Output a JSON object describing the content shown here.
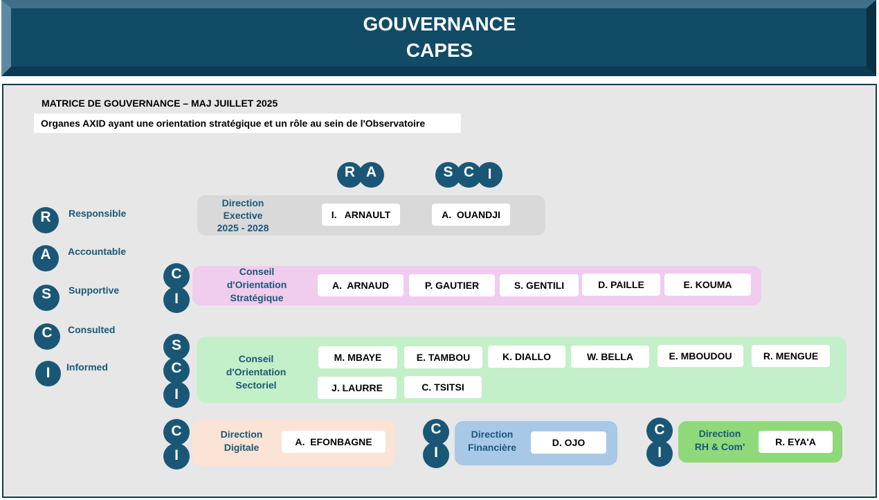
{
  "header": {
    "line1": "GOUVERNANCE",
    "line2": "CAPES"
  },
  "matrix_title": "MATRICE DE GOUVERNANCE – MAJ JUILLET 2025",
  "subtitle": "Organes AXID ayant une orientation stratégique et un rôle au sein de l'Observatoire",
  "legend": [
    {
      "letter": "R",
      "label": "Responsible"
    },
    {
      "letter": "A",
      "label": "Accountable"
    },
    {
      "letter": "S",
      "label": "Supportive"
    },
    {
      "letter": "C",
      "label": "Consulted"
    },
    {
      "letter": "I",
      "label": "Informed"
    }
  ],
  "column_roles": {
    "col1": [
      "R",
      "A"
    ],
    "col2": [
      "S",
      "C",
      "I"
    ]
  },
  "colors": {
    "header": "#124b66",
    "circle": "#1a5776",
    "direction_executive": "#d9d9d9",
    "conseil_strategique": "#f0ccee",
    "conseil_sectoriel": "#c3f0c8",
    "direction_digitale": "#fbe3d6",
    "direction_financiere": "#a8c8e8",
    "direction_rh": "#8fd97a"
  },
  "groups": {
    "direction_executive": {
      "title_lines": [
        "Direction",
        "Exective",
        "2025 - 2028"
      ],
      "members": [
        "I.   ARNAULT",
        "A.  OUANDJI"
      ]
    },
    "conseil_strategique": {
      "roles": [
        "C",
        "I"
      ],
      "title_lines": [
        "Conseil",
        "d'Orientation",
        "Stratégique"
      ],
      "members": [
        "A.  ARNAUD",
        "P. GAUTIER",
        "S. GENTILI",
        "D. PAILLE",
        "E. KOUMA"
      ]
    },
    "conseil_sectoriel": {
      "roles": [
        "S",
        "C",
        "I"
      ],
      "title_lines": [
        "Conseil",
        "d'Orientation",
        "Sectoriel"
      ],
      "members": [
        "M. MBAYE",
        "E. TAMBOU",
        "K. DIALLO",
        "W. BELLA",
        "E. MBOUDOU",
        "R. MENGUE",
        "J. LAURRE",
        "C. TSITSI"
      ]
    },
    "direction_digitale": {
      "roles": [
        "C",
        "I"
      ],
      "title_lines": [
        "Direction",
        "Digitale"
      ],
      "members": [
        "A.  EFONBAGNE"
      ]
    },
    "direction_financiere": {
      "roles": [
        "C",
        "I"
      ],
      "title_lines": [
        "Direction",
        "Financière"
      ],
      "members": [
        "D. OJO"
      ]
    },
    "direction_rh": {
      "roles": [
        "C",
        "I"
      ],
      "title_lines": [
        "Direction",
        "RH & Com'"
      ],
      "members": [
        "R. EYA'A"
      ]
    }
  }
}
